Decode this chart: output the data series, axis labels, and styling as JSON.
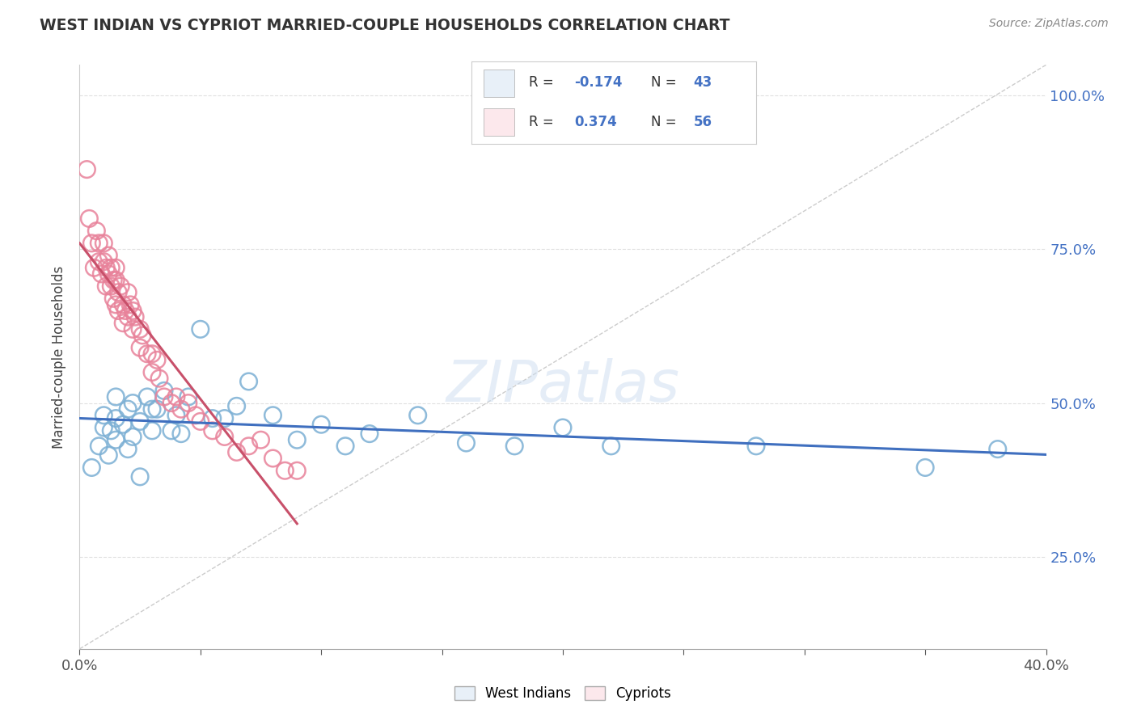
{
  "title": "WEST INDIAN VS CYPRIOT MARRIED-COUPLE HOUSEHOLDS CORRELATION CHART",
  "source": "Source: ZipAtlas.com",
  "ylabel": "Married-couple Households",
  "xlim": [
    0.0,
    0.4
  ],
  "ylim": [
    0.1,
    1.05
  ],
  "west_indian_R": -0.174,
  "west_indian_N": 43,
  "cypriot_R": 0.374,
  "cypriot_N": 56,
  "west_indian_color": "#7bafd4",
  "cypriot_color": "#e8829a",
  "west_indian_line_color": "#3f6fbf",
  "cypriot_line_color": "#c8506a",
  "diagonal_color": "#cccccc",
  "background_color": "#ffffff",
  "legend_box_color": "#e8f0f8",
  "legend_box_cy_color": "#fce8ec",
  "west_indian_x": [
    0.005,
    0.008,
    0.01,
    0.01,
    0.012,
    0.013,
    0.015,
    0.015,
    0.015,
    0.018,
    0.02,
    0.02,
    0.022,
    0.022,
    0.025,
    0.025,
    0.028,
    0.03,
    0.03,
    0.032,
    0.035,
    0.038,
    0.04,
    0.042,
    0.045,
    0.05,
    0.055,
    0.06,
    0.065,
    0.07,
    0.08,
    0.09,
    0.1,
    0.11,
    0.12,
    0.14,
    0.16,
    0.18,
    0.2,
    0.22,
    0.28,
    0.35,
    0.38
  ],
  "west_indian_y": [
    0.395,
    0.43,
    0.46,
    0.48,
    0.415,
    0.455,
    0.475,
    0.44,
    0.51,
    0.465,
    0.49,
    0.425,
    0.5,
    0.445,
    0.47,
    0.38,
    0.51,
    0.49,
    0.455,
    0.49,
    0.52,
    0.455,
    0.48,
    0.45,
    0.51,
    0.62,
    0.475,
    0.475,
    0.495,
    0.535,
    0.48,
    0.44,
    0.465,
    0.43,
    0.45,
    0.48,
    0.435,
    0.43,
    0.46,
    0.43,
    0.43,
    0.395,
    0.425
  ],
  "cypriot_x": [
    0.003,
    0.004,
    0.005,
    0.006,
    0.007,
    0.008,
    0.008,
    0.009,
    0.01,
    0.01,
    0.011,
    0.011,
    0.012,
    0.012,
    0.013,
    0.013,
    0.014,
    0.014,
    0.015,
    0.015,
    0.015,
    0.016,
    0.016,
    0.017,
    0.018,
    0.018,
    0.019,
    0.02,
    0.02,
    0.021,
    0.022,
    0.022,
    0.023,
    0.025,
    0.025,
    0.026,
    0.028,
    0.03,
    0.03,
    0.032,
    0.033,
    0.035,
    0.038,
    0.04,
    0.042,
    0.045,
    0.048,
    0.05,
    0.055,
    0.06,
    0.065,
    0.07,
    0.075,
    0.08,
    0.085,
    0.09
  ],
  "cypriot_y": [
    0.88,
    0.8,
    0.76,
    0.72,
    0.78,
    0.76,
    0.73,
    0.71,
    0.76,
    0.73,
    0.72,
    0.69,
    0.74,
    0.71,
    0.72,
    0.69,
    0.7,
    0.67,
    0.72,
    0.7,
    0.66,
    0.68,
    0.65,
    0.69,
    0.66,
    0.63,
    0.65,
    0.68,
    0.64,
    0.66,
    0.65,
    0.62,
    0.64,
    0.62,
    0.59,
    0.61,
    0.58,
    0.58,
    0.55,
    0.57,
    0.54,
    0.51,
    0.5,
    0.51,
    0.49,
    0.5,
    0.48,
    0.47,
    0.455,
    0.445,
    0.42,
    0.43,
    0.44,
    0.41,
    0.39,
    0.39
  ]
}
